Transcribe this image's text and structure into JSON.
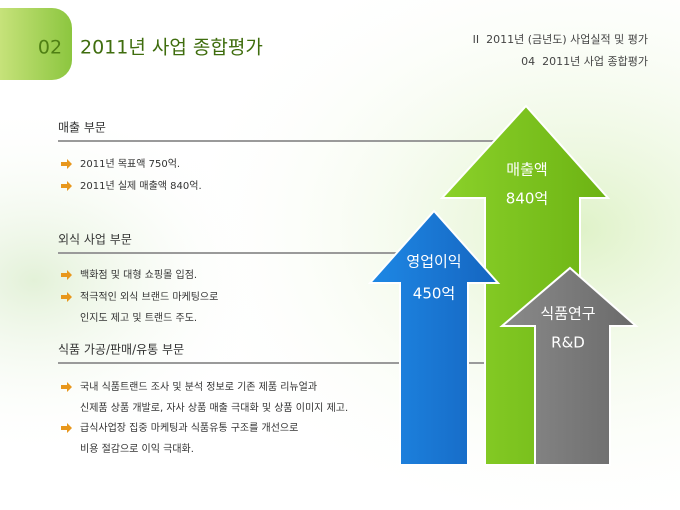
{
  "header": {
    "number": "02",
    "title": "2011년 사업 종합평가",
    "breadcrumb": [
      "II  2011년 (금년도) 사업실적 및 평가",
      "04  2011년 사업 종합평가"
    ]
  },
  "sections": [
    {
      "title": "매출 부문",
      "bullets": [
        {
          "lines": [
            "2011년 목표액 750억."
          ]
        },
        {
          "lines": [
            "2011년 실제 매출액 840억."
          ]
        }
      ]
    },
    {
      "title": "외식 사업 부문",
      "bullets": [
        {
          "lines": [
            "백화점 및 대형 쇼핑몰 입점."
          ]
        },
        {
          "lines": [
            "적극적인 외식 브랜드 마케팅으로",
            "인지도 제고 및 트랜드 주도."
          ]
        }
      ]
    },
    {
      "title": "식품 가공/판매/유통 부문",
      "bullets": [
        {
          "lines": [
            "국내 식품트랜드 조사 및 분석 정보로 기존 제품 리뉴얼과",
            "신제품 상품 개발로, 자사 상품 매출 극대화 및 상품 이미지 제고."
          ]
        },
        {
          "lines": [
            "급식사업장 집중 마케팅과 식품유통 구조를 개선으로",
            "비용 절감으로 이익 극대화."
          ]
        }
      ]
    }
  ],
  "arrows": [
    {
      "label": "매출액",
      "value": "840억"
    },
    {
      "label": "영업이익",
      "value": "450억"
    },
    {
      "label": "식품연구",
      "value": "R&D"
    }
  ]
}
